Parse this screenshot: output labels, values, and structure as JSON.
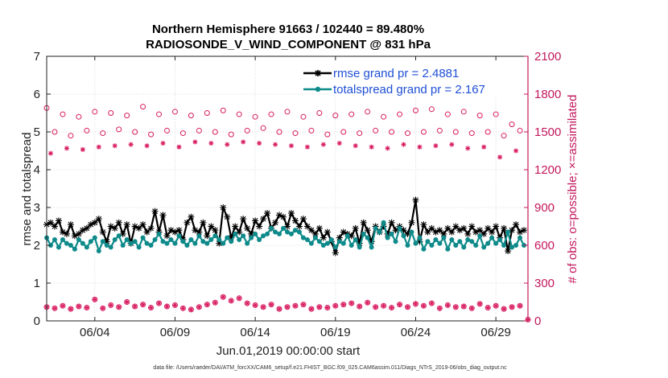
{
  "chart_data": {
    "type": "line",
    "title": "Northern Hemisphere 91663 / 102440 = 89.480%",
    "subtitle": "RADIOSONDE_V_WIND_COMPONENT @ 831 hPa",
    "xlabel": "Jun.01,2019 00:00:00 start",
    "ylabel": "rmse and totalspread",
    "y2label": "# of obs: o=possible; ×=assimilated",
    "footnote": "data file: /Users/raeder/DAI/ATM_forcXX/CAM6_setup/f.e21.FHIST_BGC.f09_025.CAM6assim.011/Diags_NTrS_2019-06/obs_diag_output.nc",
    "xlim": [
      1.0,
      31.0
    ],
    "ylim": [
      0,
      7
    ],
    "y2lim": [
      0,
      2100
    ],
    "grid": true,
    "x_ticks": [
      4,
      9,
      14,
      19,
      24,
      29
    ],
    "x_tick_labels": [
      "06/04",
      "06/09",
      "06/14",
      "06/19",
      "06/24",
      "06/29"
    ],
    "y_ticks": [
      0,
      1,
      2,
      3,
      4,
      5,
      6,
      7
    ],
    "y_tick_labels": [
      "0",
      "1",
      "2",
      "3",
      "4",
      "5",
      "6",
      "7"
    ],
    "y2_ticks": [
      0,
      300,
      600,
      900,
      1200,
      1500,
      1800,
      2100
    ],
    "y2_tick_labels": [
      "0",
      "300",
      "600",
      "900",
      "1200",
      "1500",
      "1800",
      "2100"
    ],
    "colors": {
      "rmse": "#000000",
      "spread": "#0e8a8a",
      "obs": "#d81b60",
      "legend_text": "#1f4fd6",
      "right_axis": "#c2185b"
    },
    "series": [
      {
        "name": "rmse grand pr = 2.4881",
        "x": [
          1.0,
          1.25,
          1.5,
          1.75,
          2.0,
          2.25,
          2.5,
          2.75,
          3.0,
          3.25,
          3.5,
          3.75,
          4.0,
          4.25,
          4.5,
          4.75,
          5.0,
          5.25,
          5.5,
          5.75,
          6.0,
          6.25,
          6.5,
          6.75,
          7.0,
          7.25,
          7.5,
          7.75,
          8.0,
          8.25,
          8.5,
          8.75,
          9.0,
          9.25,
          9.5,
          9.75,
          10.0,
          10.25,
          10.5,
          10.75,
          11.0,
          11.25,
          11.5,
          11.75,
          12.0,
          12.25,
          12.5,
          12.75,
          13.0,
          13.25,
          13.5,
          13.75,
          14.0,
          14.25,
          14.5,
          14.75,
          15.0,
          15.25,
          15.5,
          15.75,
          16.0,
          16.25,
          16.5,
          16.75,
          17.0,
          17.25,
          17.5,
          17.75,
          18.0,
          18.25,
          18.5,
          18.75,
          19.0,
          19.25,
          19.5,
          19.75,
          20.0,
          20.25,
          20.5,
          20.75,
          21.0,
          21.25,
          21.5,
          21.75,
          22.0,
          22.25,
          22.5,
          22.75,
          23.0,
          23.25,
          23.5,
          23.75,
          24.0,
          24.25,
          24.5,
          24.75,
          25.0,
          25.25,
          25.5,
          25.75,
          26.0,
          26.25,
          26.5,
          26.75,
          27.0,
          27.25,
          27.5,
          27.75,
          28.0,
          28.25,
          28.5,
          28.75,
          29.0,
          29.25,
          29.5,
          29.75,
          30.0,
          30.25,
          30.5,
          30.75
        ],
        "values": [
          2.55,
          2.6,
          2.5,
          2.65,
          2.35,
          2.3,
          2.55,
          2.25,
          2.3,
          2.4,
          2.45,
          2.55,
          2.6,
          2.7,
          2.35,
          2.1,
          2.5,
          2.45,
          2.6,
          2.3,
          2.55,
          2.05,
          2.5,
          2.45,
          2.55,
          2.35,
          2.45,
          2.9,
          2.35,
          2.8,
          2.25,
          2.4,
          2.35,
          2.4,
          2.15,
          2.6,
          2.75,
          2.4,
          2.35,
          2.6,
          2.25,
          2.5,
          2.4,
          2.05,
          3.0,
          2.75,
          2.2,
          2.5,
          2.35,
          2.7,
          2.45,
          2.3,
          2.65,
          2.5,
          2.7,
          2.85,
          2.45,
          2.6,
          2.8,
          2.75,
          2.5,
          2.85,
          2.65,
          2.5,
          2.7,
          2.5,
          2.4,
          2.3,
          2.45,
          2.2,
          2.35,
          2.1,
          1.8,
          2.2,
          2.35,
          2.3,
          2.25,
          2.45,
          2.05,
          2.6,
          2.4,
          2.1,
          2.5,
          2.35,
          2.5,
          2.3,
          2.6,
          2.4,
          2.5,
          2.4,
          2.3,
          2.6,
          3.2,
          2.1,
          2.55,
          2.35,
          2.45,
          2.35,
          2.4,
          2.3,
          2.45,
          2.35,
          2.5,
          2.4,
          2.45,
          2.3,
          2.5,
          2.35,
          2.4,
          2.3,
          2.45,
          2.35,
          2.5,
          2.2,
          2.45,
          1.85,
          2.4,
          2.55,
          2.35,
          2.4
        ]
      },
      {
        "name": "totalspread grand pr = 2.167",
        "x": [
          1.0,
          1.25,
          1.5,
          1.75,
          2.0,
          2.25,
          2.5,
          2.75,
          3.0,
          3.25,
          3.5,
          3.75,
          4.0,
          4.25,
          4.5,
          4.75,
          5.0,
          5.25,
          5.5,
          5.75,
          6.0,
          6.25,
          6.5,
          6.75,
          7.0,
          7.25,
          7.5,
          7.75,
          8.0,
          8.25,
          8.5,
          8.75,
          9.0,
          9.25,
          9.5,
          9.75,
          10.0,
          10.25,
          10.5,
          10.75,
          11.0,
          11.25,
          11.5,
          11.75,
          12.0,
          12.25,
          12.5,
          12.75,
          13.0,
          13.25,
          13.5,
          13.75,
          14.0,
          14.25,
          14.5,
          14.75,
          15.0,
          15.25,
          15.5,
          15.75,
          16.0,
          16.25,
          16.5,
          16.75,
          17.0,
          17.25,
          17.5,
          17.75,
          18.0,
          18.25,
          18.5,
          18.75,
          19.0,
          19.25,
          19.5,
          19.75,
          20.0,
          20.25,
          20.5,
          20.75,
          21.0,
          21.25,
          21.5,
          21.75,
          22.0,
          22.25,
          22.5,
          22.75,
          23.0,
          23.25,
          23.5,
          23.75,
          24.0,
          24.25,
          24.5,
          24.75,
          25.0,
          25.25,
          25.5,
          25.75,
          26.0,
          26.25,
          26.5,
          26.75,
          27.0,
          27.25,
          27.5,
          27.75,
          28.0,
          28.25,
          28.5,
          28.75,
          29.0,
          29.25,
          29.5,
          29.75,
          30.0,
          30.25,
          30.5,
          30.75
        ],
        "values": [
          2.2,
          2.0,
          2.15,
          1.95,
          2.15,
          2.05,
          2.0,
          1.9,
          2.15,
          2.05,
          1.95,
          2.1,
          2.2,
          1.85,
          2.1,
          2.0,
          1.95,
          2.15,
          2.25,
          2.0,
          2.15,
          2.05,
          2.1,
          1.95,
          2.2,
          2.05,
          2.0,
          2.15,
          2.3,
          2.1,
          2.05,
          2.15,
          2.05,
          2.25,
          2.1,
          2.0,
          2.15,
          2.05,
          2.25,
          2.1,
          2.05,
          2.15,
          2.25,
          2.15,
          2.05,
          2.2,
          2.1,
          2.3,
          2.15,
          2.25,
          2.05,
          2.2,
          2.3,
          2.15,
          2.25,
          2.3,
          2.45,
          2.35,
          2.3,
          2.45,
          2.35,
          2.3,
          2.4,
          2.35,
          2.2,
          2.15,
          2.05,
          2.2,
          2.1,
          2.0,
          2.05,
          2.15,
          1.95,
          2.1,
          2.05,
          2.25,
          2.0,
          2.15,
          1.95,
          2.3,
          2.2,
          1.95,
          2.45,
          2.35,
          2.6,
          2.2,
          2.3,
          2.1,
          2.45,
          2.25,
          2.0,
          2.35,
          2.05,
          2.2,
          1.9,
          2.1,
          2.0,
          2.15,
          2.05,
          2.2,
          1.9,
          2.15,
          2.0,
          2.1,
          1.95,
          2.15,
          2.1,
          2.0,
          2.25,
          1.95,
          2.05,
          2.2,
          2.05,
          2.15,
          2.0,
          2.35,
          1.95,
          2.0,
          2.2,
          2.0
        ]
      }
    ],
    "obs_possible": {
      "x": [
        1.0,
        1.5,
        2.0,
        2.5,
        3.0,
        3.5,
        4.0,
        4.5,
        5.0,
        5.5,
        6.0,
        6.5,
        7.0,
        7.5,
        8.0,
        8.5,
        9.0,
        9.5,
        10.0,
        10.5,
        11.0,
        11.5,
        12.0,
        12.5,
        13.0,
        13.5,
        14.0,
        14.5,
        15.0,
        15.5,
        16.0,
        16.5,
        17.0,
        17.5,
        18.0,
        18.5,
        19.0,
        19.5,
        20.0,
        20.5,
        21.0,
        21.5,
        22.0,
        22.5,
        23.0,
        23.5,
        24.0,
        24.5,
        25.0,
        25.5,
        26.0,
        26.5,
        27.0,
        27.5,
        28.0,
        28.5,
        29.0,
        29.5,
        30.0,
        30.5
      ],
      "values": [
        1690,
        1500,
        1640,
        1470,
        1620,
        1510,
        1660,
        1490,
        1650,
        1520,
        1630,
        1500,
        1700,
        1480,
        1640,
        1510,
        1660,
        1490,
        1630,
        1510,
        1650,
        1500,
        1670,
        1480,
        1640,
        1510,
        1620,
        1530,
        1640,
        1500,
        1660,
        1490,
        1620,
        1510,
        1650,
        1480,
        1630,
        1500,
        1640,
        1490,
        1660,
        1510,
        1620,
        1500,
        1640,
        1490,
        1670,
        1500,
        1680,
        1510,
        1640,
        1500,
        1660,
        1490,
        1630,
        1500,
        1640,
        1470,
        1560,
        1510
      ]
    },
    "obs_assimilated": {
      "x": [
        1.25,
        2.25,
        3.25,
        4.25,
        5.25,
        6.25,
        7.25,
        8.25,
        9.25,
        10.25,
        11.25,
        12.25,
        13.25,
        14.25,
        15.25,
        16.25,
        17.25,
        18.25,
        19.25,
        20.25,
        21.25,
        22.25,
        23.25,
        24.25,
        25.25,
        26.25,
        27.25,
        28.25,
        29.25,
        30.25
      ],
      "values": [
        1330,
        1370,
        1360,
        1380,
        1390,
        1400,
        1390,
        1410,
        1380,
        1420,
        1410,
        1400,
        1420,
        1410,
        1400,
        1390,
        1380,
        1400,
        1410,
        1390,
        1380,
        1370,
        1400,
        1380,
        1390,
        1400,
        1370,
        1380,
        1300,
        1350
      ]
    },
    "obs_bottom_possible": {
      "x": [
        1.0,
        1.5,
        2.0,
        2.5,
        3.0,
        3.5,
        4.0,
        4.5,
        5.0,
        5.5,
        6.0,
        6.5,
        7.0,
        7.5,
        8.0,
        8.5,
        9.0,
        9.5,
        10.0,
        10.5,
        11.0,
        11.5,
        12.0,
        12.5,
        13.0,
        13.5,
        14.0,
        14.5,
        15.0,
        15.5,
        16.0,
        16.5,
        17.0,
        17.5,
        18.0,
        18.5,
        19.0,
        19.5,
        20.0,
        20.5,
        21.0,
        21.5,
        22.0,
        22.5,
        23.0,
        23.5,
        24.0,
        24.5,
        25.0,
        25.5,
        26.0,
        26.5,
        27.0,
        27.5,
        28.0,
        28.5,
        29.0,
        29.5,
        30.0,
        30.5,
        31.0
      ],
      "values": [
        110,
        100,
        120,
        95,
        115,
        105,
        170,
        100,
        125,
        110,
        150,
        115,
        130,
        105,
        140,
        115,
        125,
        100,
        90,
        110,
        130,
        145,
        190,
        160,
        180,
        140,
        125,
        110,
        130,
        95,
        110,
        120,
        130,
        95,
        110,
        105,
        120,
        130,
        140,
        115,
        145,
        110,
        120,
        105,
        130,
        110,
        135,
        120,
        140,
        100,
        125,
        110,
        115,
        100,
        135,
        105,
        120,
        95,
        110,
        120,
        10
      ]
    }
  }
}
